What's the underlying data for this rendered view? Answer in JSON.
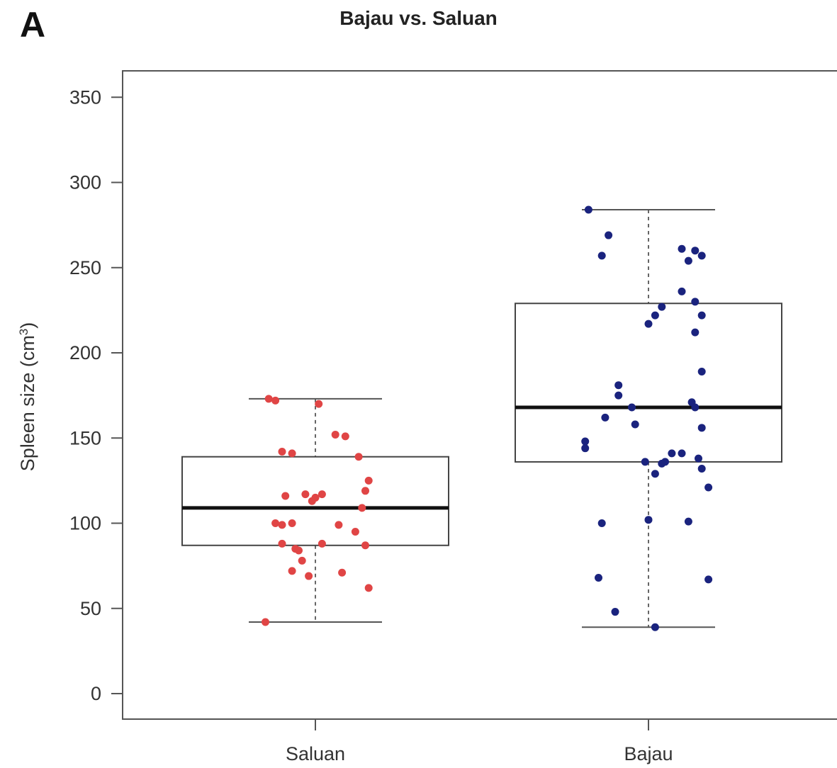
{
  "panel_letter": "A",
  "chart_data": {
    "type": "boxplot",
    "title": "Bajau vs. Saluan",
    "xlabel": "",
    "ylabel": "Spleen size (cm",
    "ylabel_superscript": "3",
    "ylabel_close": ")",
    "ylim": [
      0,
      360
    ],
    "yticks": [
      0,
      50,
      100,
      150,
      200,
      250,
      300,
      350
    ],
    "categories": [
      "Saluan",
      "Bajau"
    ],
    "grid": false,
    "series": [
      {
        "category": "Saluan",
        "color": "#e04545",
        "box": {
          "whisker_low": 42,
          "q1": 87,
          "median": 109,
          "q3": 139,
          "whisker_high": 173
        },
        "points": [
          [
            -0.14,
            173
          ],
          [
            -0.12,
            172
          ],
          [
            0.01,
            170
          ],
          [
            0.06,
            152
          ],
          [
            0.09,
            151
          ],
          [
            0.13,
            139
          ],
          [
            -0.1,
            142
          ],
          [
            -0.07,
            141
          ],
          [
            0.16,
            125
          ],
          [
            0.15,
            119
          ],
          [
            -0.09,
            116
          ],
          [
            -0.03,
            117
          ],
          [
            0.0,
            115
          ],
          [
            -0.01,
            113
          ],
          [
            0.02,
            117
          ],
          [
            0.14,
            109
          ],
          [
            -0.12,
            100
          ],
          [
            -0.07,
            100
          ],
          [
            -0.1,
            99
          ],
          [
            0.07,
            99
          ],
          [
            0.12,
            95
          ],
          [
            -0.1,
            88
          ],
          [
            0.02,
            88
          ],
          [
            0.15,
            87
          ],
          [
            -0.06,
            85
          ],
          [
            -0.05,
            84
          ],
          [
            -0.04,
            78
          ],
          [
            -0.07,
            72
          ],
          [
            -0.02,
            69
          ],
          [
            0.08,
            71
          ],
          [
            0.16,
            62
          ],
          [
            -0.15,
            42
          ]
        ]
      },
      {
        "category": "Bajau",
        "color": "#1a237e",
        "box": {
          "whisker_low": 39,
          "q1": 136,
          "median": 168,
          "q3": 229,
          "whisker_high": 284
        },
        "points": [
          [
            -0.18,
            284
          ],
          [
            -0.12,
            269
          ],
          [
            -0.14,
            257
          ],
          [
            0.1,
            261
          ],
          [
            0.14,
            260
          ],
          [
            0.16,
            257
          ],
          [
            0.12,
            254
          ],
          [
            0.1,
            236
          ],
          [
            0.14,
            230
          ],
          [
            0.04,
            227
          ],
          [
            0.02,
            222
          ],
          [
            0.16,
            222
          ],
          [
            0.0,
            217
          ],
          [
            0.14,
            212
          ],
          [
            0.16,
            189
          ],
          [
            -0.09,
            181
          ],
          [
            -0.09,
            175
          ],
          [
            -0.13,
            162
          ],
          [
            -0.05,
            168
          ],
          [
            0.13,
            171
          ],
          [
            0.14,
            168
          ],
          [
            -0.04,
            158
          ],
          [
            0.16,
            156
          ],
          [
            -0.19,
            148
          ],
          [
            -0.19,
            144
          ],
          [
            0.07,
            141
          ],
          [
            0.1,
            141
          ],
          [
            0.15,
            138
          ],
          [
            -0.01,
            136
          ],
          [
            0.05,
            136
          ],
          [
            0.04,
            135
          ],
          [
            0.16,
            132
          ],
          [
            0.02,
            129
          ],
          [
            0.18,
            121
          ],
          [
            -0.14,
            100
          ],
          [
            0.0,
            102
          ],
          [
            0.12,
            101
          ],
          [
            -0.15,
            68
          ],
          [
            0.18,
            67
          ],
          [
            -0.1,
            48
          ],
          [
            0.02,
            39
          ]
        ]
      }
    ]
  }
}
